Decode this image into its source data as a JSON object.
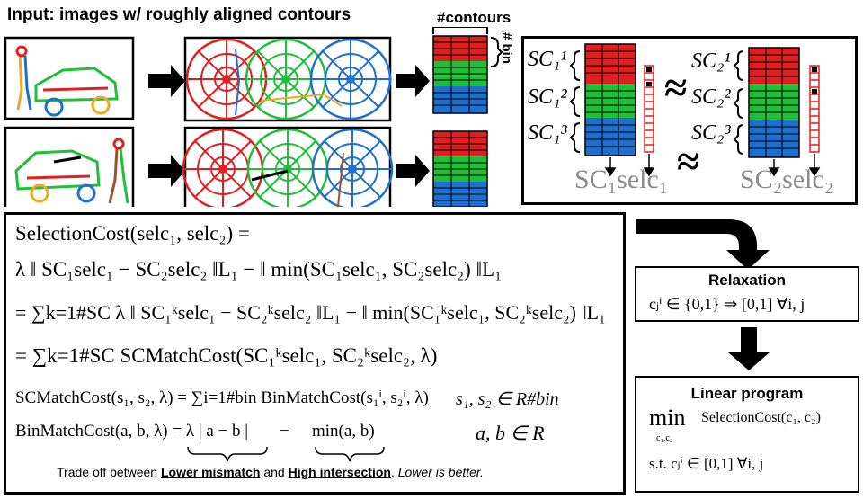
{
  "header": {
    "input_title": "Input: images w/ roughly aligned contours",
    "contours_label": "#contours",
    "bin_label": "# bin"
  },
  "descriptor_panel": {
    "left_labels": [
      "SC₁¹",
      "SC₁²",
      "SC₁³"
    ],
    "right_labels": [
      "SC₂¹",
      "SC₂²",
      "SC₂³"
    ],
    "approx_symbol": "≈",
    "left_product": "SC₁selc₁",
    "right_product": "SC₂selc₂"
  },
  "equations": {
    "line1": "SelectionCost(selc₁, selc₂) =",
    "line2": "λ ‖ SC₁selc₁ − SC₂selc₂ ‖L₁ − ‖ min(SC₁selc₁, SC₂selc₂) ‖L₁",
    "line3": "= ∑k=1#SC λ ‖ SC₁ᵏselc₁ − SC₂ᵏselc₂ ‖L₁ − ‖ min(SC₁ᵏselc₁, SC₂ᵏselc₂) ‖L₁",
    "line4": "= ∑k=1#SC SCMatchCost(SC₁ᵏselc₁, SC₂ᵏselc₂, λ)",
    "line5": "SCMatchCost(s₁, s₂, λ) = ∑i=1#bin BinMatchCost(s₁ⁱ, s₂ⁱ, λ)",
    "line5_domain": "s₁, s₂ ∈ R#bin",
    "line6a": "BinMatchCost(a, b, λ) = λ | a − b |",
    "line6_minus": "−",
    "line6b": "min(a, b)",
    "line6_domain": "a, b ∈ R",
    "footnote_prefix": "Trade off between ",
    "footnote_lower": "Lower mismatch",
    "footnote_and": " and ",
    "footnote_high": "High intersection",
    "footnote_dot": ". ",
    "footnote_italic": "Lower is better."
  },
  "relaxation": {
    "title": "Relaxation",
    "body": "cⱼⁱ ∈ {0,1} ⇒ [0,1]   ∀i, j"
  },
  "linear_program": {
    "title": "Linear program",
    "min": "min",
    "min_sub": "c₁,c₂",
    "objective": "SelectionCost(c₁, c₂)",
    "constraint": "s.t.  cⱼⁱ ∈ [0,1]   ∀i, j"
  },
  "colors": {
    "red": "#e02020",
    "green": "#1fbf3a",
    "blue": "#1e6fcf",
    "selector": "#e02020"
  }
}
